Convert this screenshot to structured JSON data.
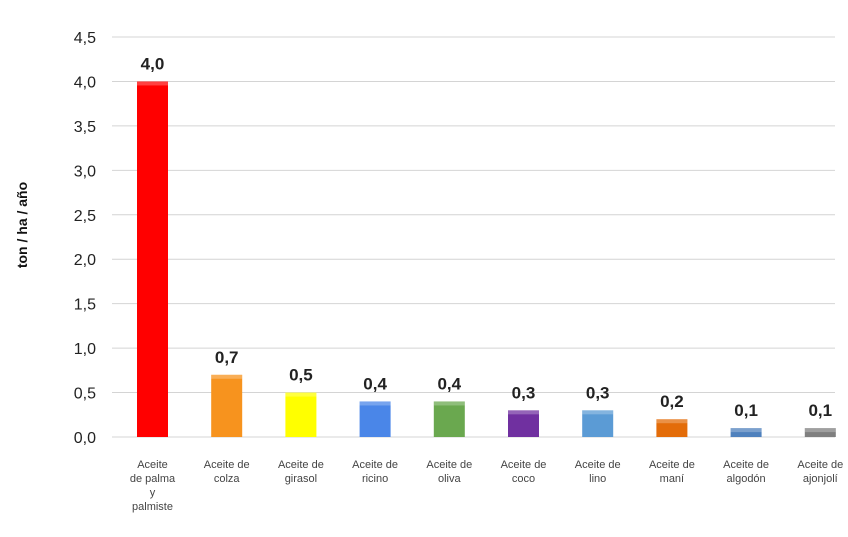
{
  "chart_data": {
    "type": "bar",
    "ylabel": "ton / ha / año",
    "ylim": [
      0,
      4.5
    ],
    "yticks": [
      "0,0",
      "0,5",
      "1,0",
      "1,5",
      "2,0",
      "2,5",
      "3,0",
      "3,5",
      "4,0",
      "4,5"
    ],
    "grid": true,
    "categories": [
      [
        "Aceite",
        "de palma",
        "y",
        "palmiste"
      ],
      [
        "Aceite de",
        "colza"
      ],
      [
        "Aceite de",
        "girasol"
      ],
      [
        "Aceite de",
        "ricino"
      ],
      [
        "Aceite de",
        "oliva"
      ],
      [
        "Aceite de",
        "coco"
      ],
      [
        "Aceite de",
        "lino"
      ],
      [
        "Aceite de",
        "maní"
      ],
      [
        "Aceite de",
        "algodón"
      ],
      [
        "Aceite de",
        "ajonjolí"
      ]
    ],
    "values": [
      4.0,
      0.7,
      0.5,
      0.4,
      0.4,
      0.3,
      0.3,
      0.2,
      0.1,
      0.1
    ],
    "data_labels": [
      "4,0",
      "0,7",
      "0,5",
      "0,4",
      "0,4",
      "0,3",
      "0,3",
      "0,2",
      "0,1",
      "0,1"
    ],
    "colors": [
      "#ff0000",
      "#f7931e",
      "#ffff00",
      "#4a86e8",
      "#6aa84f",
      "#7030a0",
      "#5b9bd5",
      "#e36c09",
      "#4f81bd",
      "#7f7f7f"
    ]
  }
}
